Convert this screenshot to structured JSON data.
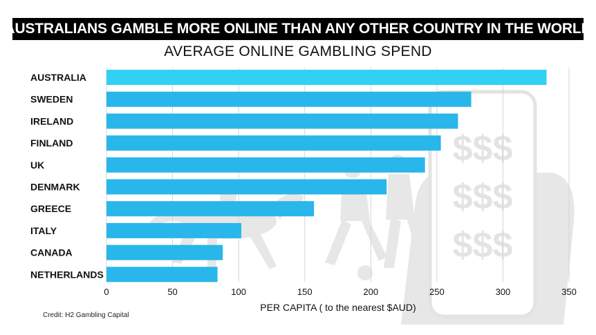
{
  "banner": {
    "title": "AUSTRALIANS GAMBLE MORE ONLINE THAN ANY OTHER COUNTRY IN THE WORLD"
  },
  "subtitle": "AVERAGE ONLINE GAMBLING SPEND",
  "credit": "Credit: H2 Gambling Capital",
  "colors": {
    "bar": "#29b6ea",
    "bar_top": "#33d0f5",
    "grid": "#d5d5d5",
    "text": "#111111"
  },
  "decorations": [
    "horse-racing-silhouette",
    "soccer-players-silhouette",
    "phone-in-hand-with-dollar-signs"
  ],
  "chart_data": {
    "type": "bar",
    "orientation": "horizontal",
    "categories": [
      "AUSTRALIA",
      "SWEDEN",
      "IRELAND",
      "FINLAND",
      "UK",
      "DENMARK",
      "GREECE",
      "ITALY",
      "CANADA",
      "NETHERLANDS"
    ],
    "values": [
      333,
      276,
      266,
      253,
      241,
      212,
      157,
      102,
      88,
      84
    ],
    "xlabel": "PER CAPITA ( to the nearest $AUD)",
    "xlim": [
      0,
      350
    ],
    "xticks": [
      "0",
      "50",
      "100",
      "150",
      "200",
      "250",
      "300",
      "350"
    ],
    "grid": "vertical"
  }
}
